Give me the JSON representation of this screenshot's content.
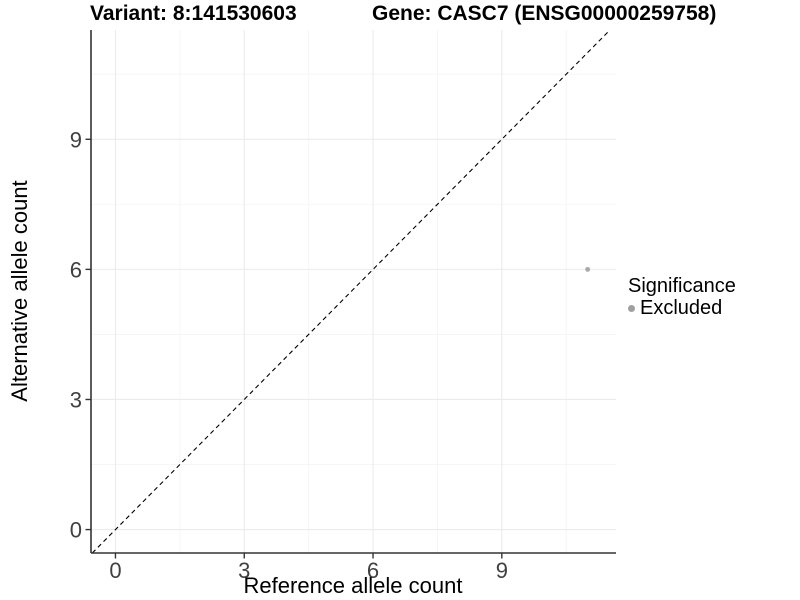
{
  "chart_data": {
    "type": "scatter",
    "titles": {
      "left": "Variant: 8:141530603",
      "right": "Gene: CASC7 (ENSG00000259758)"
    },
    "xlabel": "Reference allele count",
    "ylabel": "Alternative allele count",
    "xticks": [
      0,
      3,
      6,
      9
    ],
    "yticks": [
      0,
      3,
      6,
      9
    ],
    "minor_xticks": [
      1.5,
      4.5,
      7.5,
      10.5
    ],
    "minor_yticks": [
      1.5,
      4.5,
      7.5,
      10.5
    ],
    "xlim": [
      -0.57,
      11.66
    ],
    "ylim": [
      -0.54,
      11.52
    ],
    "grid": "major+minor",
    "identity_line": {
      "style": "dashed",
      "equation": "y = x"
    },
    "points": [
      {
        "x": 11,
        "y": 6,
        "significance": "Excluded"
      }
    ],
    "legend": {
      "title": "Significance",
      "position": "right",
      "items": [
        {
          "label": "Excluded",
          "color": "#a0a0a0"
        }
      ]
    },
    "colors": {
      "point": "#a9a9a9",
      "grid_major": "#ebebeb",
      "grid_minor": "#f5f5f5",
      "axis": "#333333",
      "identity_line": "#000000",
      "tick_label": "#404040",
      "title": "#000000",
      "background": "#ffffff"
    }
  }
}
